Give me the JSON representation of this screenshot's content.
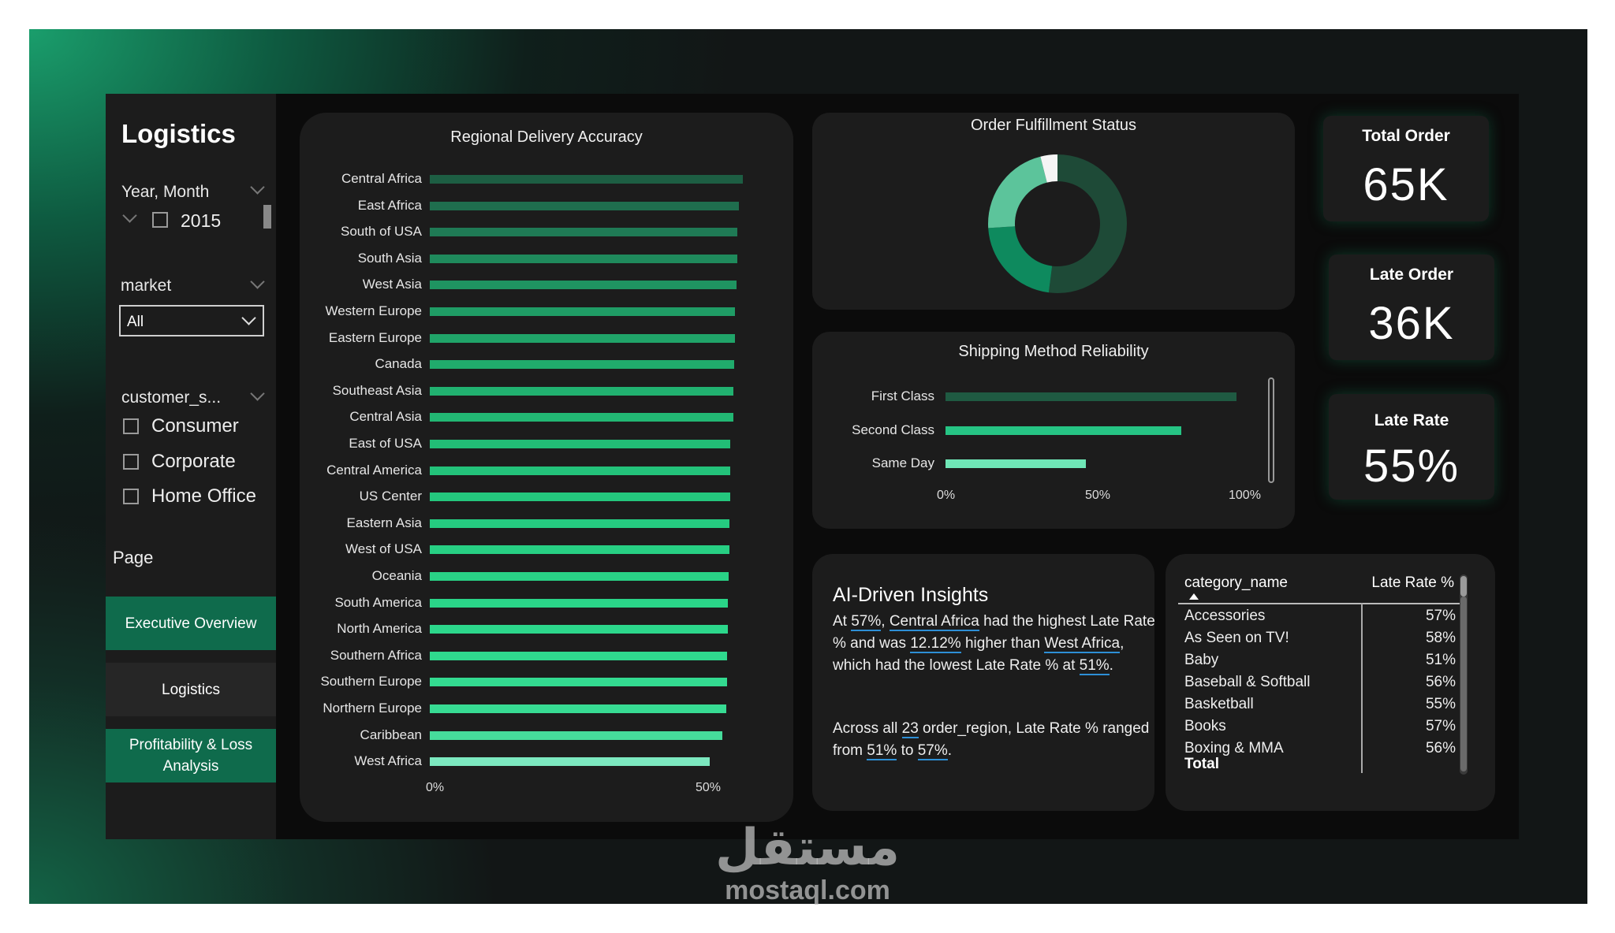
{
  "sidebar": {
    "title": "Logistics",
    "year_slicer": {
      "label": "Year, Month",
      "option": "2015"
    },
    "market_slicer": {
      "label": "market",
      "value": "All"
    },
    "segment_slicer": {
      "label": "customer_s...",
      "options": [
        "Consumer",
        "Corporate",
        "Home Office"
      ]
    },
    "page_label": "Page",
    "nav": [
      "Executive Overview",
      "Logistics",
      "Profitability & Loss Analysis"
    ]
  },
  "regional": {
    "title": "Regional Delivery Accuracy",
    "ticks": [
      "0%",
      "50%"
    ]
  },
  "fulfillment": {
    "title": "Order Fulfillment Status",
    "slices": [
      {
        "value": 0.52,
        "color": "#1e4a37"
      },
      {
        "value": 0.22,
        "color": "#0e8a5e"
      },
      {
        "value": 0.22,
        "color": "#5cc49b"
      },
      {
        "value": 0.04,
        "color": "#f5f5f5"
      }
    ]
  },
  "shipping": {
    "title": "Shipping Method Reliability",
    "ticks": [
      "0%",
      "50%",
      "100%"
    ]
  },
  "kpis": {
    "total_order": {
      "title": "Total Order",
      "value": "65K"
    },
    "late_order": {
      "title": "Late Order",
      "value": "36K"
    },
    "late_rate": {
      "title": "Late Rate",
      "value": "55%"
    }
  },
  "insights": {
    "title": "AI-Driven Insights",
    "p1": {
      "a": "At ",
      "b": "57%",
      "c": ", ",
      "d": "Central Africa",
      "e": " had the highest Late Rate % and was ",
      "f": "12.12%",
      "g": " higher than ",
      "h": "West Africa",
      "i": ", which had the lowest Late Rate % at ",
      "j": "51%",
      "k": "."
    },
    "p2": {
      "a": "Across all ",
      "b": "23",
      "c": " order_region, Late Rate % ranged from ",
      "d": "51%",
      "e": " to ",
      "f": "57%",
      "g": "."
    }
  },
  "table": {
    "col1": "category_name",
    "col2": "Late Rate %",
    "rows": [
      {
        "name": "Accessories",
        "rate": "57%"
      },
      {
        "name": "As Seen on TV!",
        "rate": "58%"
      },
      {
        "name": "Baby",
        "rate": "51%"
      },
      {
        "name": "Baseball & Softball",
        "rate": "56%"
      },
      {
        "name": "Basketball",
        "rate": "55%"
      },
      {
        "name": "Books",
        "rate": "57%"
      },
      {
        "name": "Boxing & MMA",
        "rate": "56%"
      }
    ],
    "total_label": "Total"
  },
  "watermark": {
    "arabic": "مستقل",
    "latin": "mostaql.com"
  },
  "chart_data": [
    {
      "type": "bar",
      "orientation": "horizontal",
      "title": "Regional Delivery Accuracy",
      "categories": [
        "Central Africa",
        "East Africa",
        "South of USA",
        "South Asia",
        "West Asia",
        "Western Europe",
        "Eastern Europe",
        "Canada",
        "Southeast Asia",
        "Central Asia",
        "East of USA",
        "Central America",
        "US Center",
        "Eastern Asia",
        "West of USA",
        "Oceania",
        "South America",
        "North America",
        "Southern Africa",
        "Southern Europe",
        "Northern Europe",
        "Caribbean",
        "West Africa"
      ],
      "values": [
        57,
        56.3,
        56.1,
        56,
        55.9,
        55.6,
        55.6,
        55.5,
        55.4,
        55.3,
        54.8,
        54.8,
        54.7,
        54.6,
        54.6,
        54.5,
        54.4,
        54.3,
        54.2,
        54.2,
        54.1,
        53.4,
        51
      ],
      "colors": [
        "#1d5e43",
        "#1f6e4e",
        "#1f7a55",
        "#1f8a5c",
        "#1f9461",
        "#1f9c65",
        "#20a469",
        "#20ab6c",
        "#21b170",
        "#22b773",
        "#22bd76",
        "#23c27a",
        "#24c77d",
        "#25cb80",
        "#27cf83",
        "#29d286",
        "#2ad588",
        "#2cd78b",
        "#2fd98e",
        "#33da90",
        "#37db93",
        "#46dc9b",
        "#7ce8bf"
      ],
      "xlim": [
        0,
        57.5
      ],
      "ticks": [
        "0%",
        "50%"
      ]
    },
    {
      "type": "bar",
      "orientation": "horizontal",
      "title": "Shipping Method Reliability",
      "categories": [
        "First Class",
        "Second Class",
        "Same Day"
      ],
      "values": [
        95,
        77,
        46
      ],
      "colors": [
        "#1f5a42",
        "#26c484",
        "#6fe6b6"
      ],
      "xlim": [
        0,
        100
      ],
      "ticks": [
        "0%",
        "50%",
        "100%"
      ]
    },
    {
      "type": "pie",
      "title": "Order Fulfillment Status",
      "values": [
        52,
        22,
        22,
        4
      ],
      "colors": [
        "#1e4a37",
        "#0e8a5e",
        "#5cc49b",
        "#f5f5f5"
      ]
    }
  ]
}
